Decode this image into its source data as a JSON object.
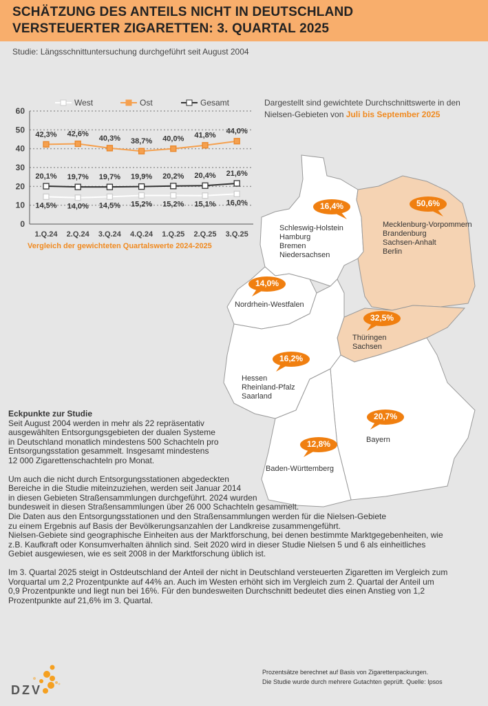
{
  "header": {
    "title_line1": "SCHÄTZUNG DES ANTEILS NICHT IN DEUTSCHLAND",
    "title_line2": "VERSTEUERTER ZIGARETTEN: 3. QUARTAL 2025"
  },
  "subtitle": "Studie: Längsschnittuntersuchung durchgeführt seit August 2004",
  "note": {
    "text": "Dargestellt sind gewichtete Durchschnittswerte in den Nielsen-Gebieten von ",
    "highlight": "Juli bis September 2025"
  },
  "chart_data": {
    "type": "line",
    "categories": [
      "1.Q.24",
      "2.Q.24",
      "3.Q.24",
      "4.Q.24",
      "1.Q.25",
      "2.Q.25",
      "3.Q.25"
    ],
    "series": [
      {
        "name": "West",
        "color": "#ffffff",
        "values": [
          14.5,
          14.0,
          14.5,
          15.2,
          15.2,
          15.1,
          16.0
        ],
        "labels": [
          "14,5%",
          "14,0%",
          "14,5%",
          "15,2%",
          "15,2%",
          "15,1%",
          "16,0%"
        ]
      },
      {
        "name": "Ost",
        "color": "#f5a04e",
        "values": [
          42.3,
          42.6,
          40.3,
          38.7,
          40.0,
          41.8,
          44.0
        ],
        "labels": [
          "42,3%",
          "42,6%",
          "40,3%",
          "38,7%",
          "40,0%",
          "41,8%",
          "44,0%"
        ]
      },
      {
        "name": "Gesamt",
        "color": "#333333",
        "values": [
          20.1,
          19.7,
          19.7,
          19.9,
          20.2,
          20.4,
          21.6
        ],
        "labels": [
          "20,1%",
          "19,7%",
          "19,7%",
          "19,9%",
          "20,2%",
          "20,4%",
          "21,6%"
        ]
      }
    ],
    "ylim": [
      0,
      60
    ],
    "yticks": [
      "0",
      "10",
      "20",
      "30",
      "40",
      "50",
      "60"
    ],
    "grid": true,
    "legend": "top",
    "caption": "Vergleich der gewichteten Quartalswerte 2024-2025"
  },
  "map": {
    "regions": [
      {
        "value": "16,4%",
        "label": [
          "Schleswig-Holstein",
          "Hamburg",
          "Bremen",
          "Niedersachsen"
        ]
      },
      {
        "value": "50,6%",
        "label": [
          "Mecklenburg-Vorpommern",
          "Brandenburg",
          "Sachsen-Anhalt",
          "Berlin"
        ]
      },
      {
        "value": "14,0%",
        "label": [
          "Nordrhein-Westfalen"
        ]
      },
      {
        "value": "32,5%",
        "label": [
          "Thüringen",
          "Sachsen"
        ]
      },
      {
        "value": "16,2%",
        "label": [
          "Hessen",
          "Rheinland-Pfalz",
          "Saarland"
        ]
      },
      {
        "value": "20,7%",
        "label": [
          "Bayern"
        ]
      },
      {
        "value": "12,8%",
        "label": [
          "Baden-Württemberg"
        ]
      }
    ],
    "east_color": "#f5d3b3",
    "bubble_color": "#f07f10"
  },
  "eckpunkte": {
    "title": "Eckpunkte zur Studie",
    "p1": [
      "Seit August 2004 werden in mehr als 22 repräsentativ",
      "ausgewählten Entsorgungsgebieten der dualen Systeme",
      "in Deutschland monatlich mindestens 500 Schachteln pro",
      "Entsorgungsstation gesammelt. Insgesamt mindestens",
      "12 000 Zigarettenschachteln pro Monat."
    ],
    "p2": [
      "Um auch die nicht durch Entsorgungsstationen abgedeckten",
      "Bereiche in die Studie miteinzuziehen, werden seit Januar 2014",
      "in diesen Gebieten Straßensammlungen durchgeführt. 2024 wurden",
      "bundesweit in diesen Straßensammlungen über 26 000 Schachteln gesammelt.",
      "Die Daten aus den Entsorgungsstationen und den Straßensammlungen werden für die Nielsen-Gebiete",
      "zu einem Ergebnis auf Basis der Bevölkerungsanzahlen der Landkreise zusammengeführt.",
      "Nielsen-Gebiete sind geographische Einheiten aus der Marktforschung, bei denen bestimmte Marktgegebenheiten, wie",
      "z.B. Kaufkraft oder Konsumverhalten ähnlich sind. Seit 2020 wird in dieser Studie Nielsen 5 und 6 als einheitliches",
      "Gebiet ausgewiesen, wie es seit 2008 in der Marktforschung üblich ist."
    ],
    "p3": [
      "Im 3. Quartal 2025 steigt in Ostdeutschland der Anteil der nicht in Deutschland versteuerten Zigaretten im Vergleich zum",
      "Vorquartal um 2,2 Prozentpunkte auf 44% an. Auch im Westen erhöht sich im Vergleich zum 2. Quartal der Anteil um",
      "0,9 Prozentpunkte und liegt nun bei 16%. Für den bundesweiten Durchschnitt bedeutet dies einen Anstieg von 1,2",
      "Prozentpunkte auf 21,6% im 3. Quartal."
    ]
  },
  "footer": {
    "logo": "DZV",
    "line1": "Prozentsätze berechnet auf Basis von Zigarettenpackungen.",
    "line2": "Die Studie wurde durch mehrere Gutachten geprüft. Quelle: Ipsos"
  }
}
